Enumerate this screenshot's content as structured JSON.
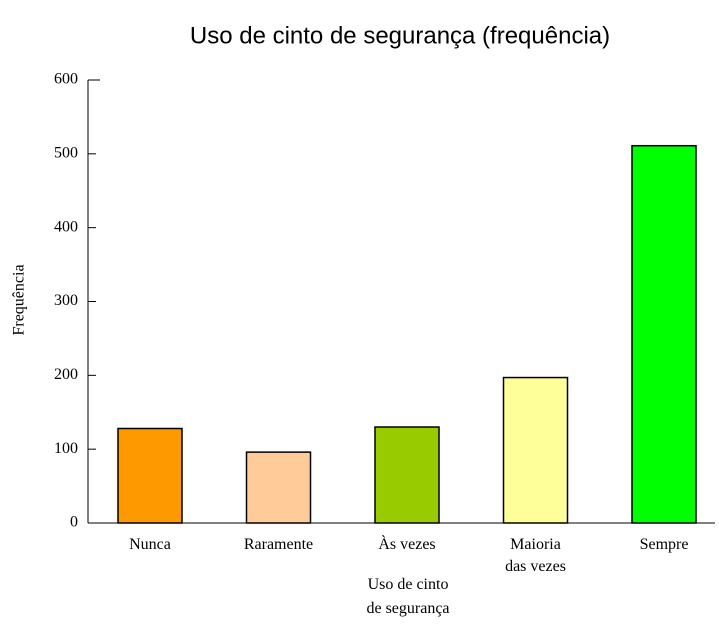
{
  "chart_data": {
    "type": "bar",
    "title": "Uso de cinto de segurança (frequência)",
    "x_label": "Uso de cinto de segurança",
    "y_label": "Frequência",
    "categories": [
      "Nunca",
      "Raramente",
      "Às vezes",
      "Maioria das vezes",
      "Sempre"
    ],
    "values": [
      128,
      96,
      130,
      197,
      511
    ],
    "colors": [
      "#ff9900",
      "#ffcc99",
      "#99cc00",
      "#ffff99",
      "#00ff00"
    ],
    "ylim": [
      0,
      600
    ],
    "yticks": [
      0,
      100,
      200,
      300,
      400,
      500,
      600
    ],
    "grid": false
  }
}
